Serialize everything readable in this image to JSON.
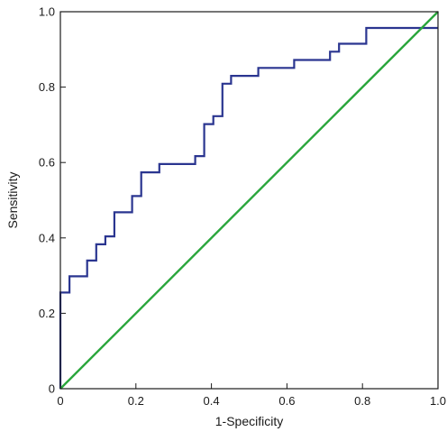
{
  "chart_data": {
    "type": "line",
    "title": "",
    "xlabel": "1-Specificity",
    "ylabel": "Sensitivity",
    "xlim": [
      0,
      1.0
    ],
    "ylim": [
      0,
      1.0
    ],
    "x_ticks": [
      "0",
      "0.2",
      "0.4",
      "0.6",
      "0.8",
      "1.0"
    ],
    "y_ticks": [
      "0",
      "0.2",
      "0.4",
      "0.6",
      "0.8",
      "1.0"
    ],
    "grid": false,
    "legend": "none",
    "series": [
      {
        "color": "#2a3590",
        "step": true,
        "x": [
          0,
          0,
          0.024,
          0.024,
          0.071,
          0.071,
          0.095,
          0.095,
          0.119,
          0.119,
          0.143,
          0.143,
          0.19,
          0.19,
          0.214,
          0.214,
          0.262,
          0.262,
          0.357,
          0.357,
          0.381,
          0.381,
          0.405,
          0.405,
          0.429,
          0.429,
          0.452,
          0.452,
          0.524,
          0.524,
          0.619,
          0.619,
          0.714,
          0.714,
          0.738,
          0.738,
          0.81,
          0.81,
          0.929,
          0.929,
          1.0
        ],
        "y": [
          0,
          0.255,
          0.255,
          0.298,
          0.298,
          0.34,
          0.34,
          0.383,
          0.383,
          0.404,
          0.404,
          0.468,
          0.468,
          0.511,
          0.511,
          0.574,
          0.574,
          0.596,
          0.596,
          0.617,
          0.617,
          0.702,
          0.702,
          0.723,
          0.723,
          0.809,
          0.809,
          0.83,
          0.83,
          0.851,
          0.851,
          0.872,
          0.872,
          0.894,
          0.894,
          0.915,
          0.915,
          0.957,
          0.957,
          0.957,
          0.957
        ]
      },
      {
        "color": "#2aa63c",
        "x": [
          0,
          1.0
        ],
        "y": [
          0,
          1.0
        ]
      }
    ]
  }
}
